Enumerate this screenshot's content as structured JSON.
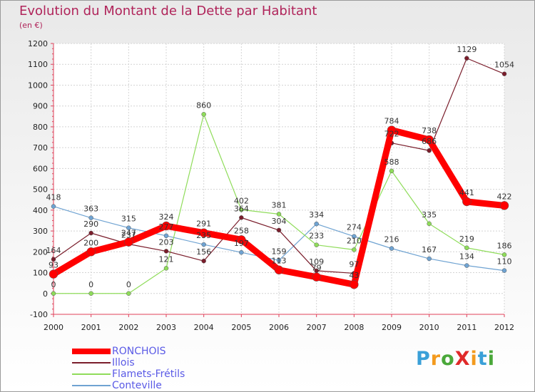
{
  "title": "Evolution du Montant de la Dette par Habitant",
  "subtitle": "(en €)",
  "logo": {
    "text": "ProXiti",
    "letter_colors": [
      "#3aa0d8",
      "#f39a1e",
      "#4aa83a",
      "#e02a2a",
      "#f39a1e",
      "#3aa0d8",
      "#4aa83a"
    ]
  },
  "chart_data": {
    "type": "line",
    "x": [
      "2000",
      "2001",
      "2002",
      "2003",
      "2004",
      "2005",
      "2006",
      "2007",
      "2008",
      "2009",
      "2010",
      "2011",
      "2012"
    ],
    "ylim": [
      -100,
      1200
    ],
    "yticks": [
      -100,
      0,
      100,
      200,
      300,
      400,
      500,
      600,
      700,
      800,
      900,
      1000,
      1100,
      1200
    ],
    "grid": true,
    "legend_position": "bottom-left",
    "series": [
      {
        "name": "Conteville",
        "color": "#6fa3d2",
        "values": [
          418,
          363,
          315,
          277,
          235,
          197,
          159,
          334,
          274,
          216,
          167,
          134,
          110
        ]
      },
      {
        "name": "Flamets-Frétils",
        "color": "#8fdc5a",
        "values": [
          0,
          0,
          0,
          121,
          860,
          402,
          381,
          233,
          210,
          588,
          335,
          219,
          186
        ]
      },
      {
        "name": "Illois",
        "color": "#7a1d2b",
        "values": [
          164,
          290,
          237,
          203,
          156,
          364,
          304,
          109,
          97,
          722,
          686,
          1129,
          1054
        ]
      },
      {
        "name": "RONCHOIS",
        "color": "#ff0000",
        "values": [
          93,
          200,
          247,
          324,
          291,
          258,
          113,
          79,
          43,
          784,
          738,
          441,
          422
        ]
      }
    ]
  }
}
